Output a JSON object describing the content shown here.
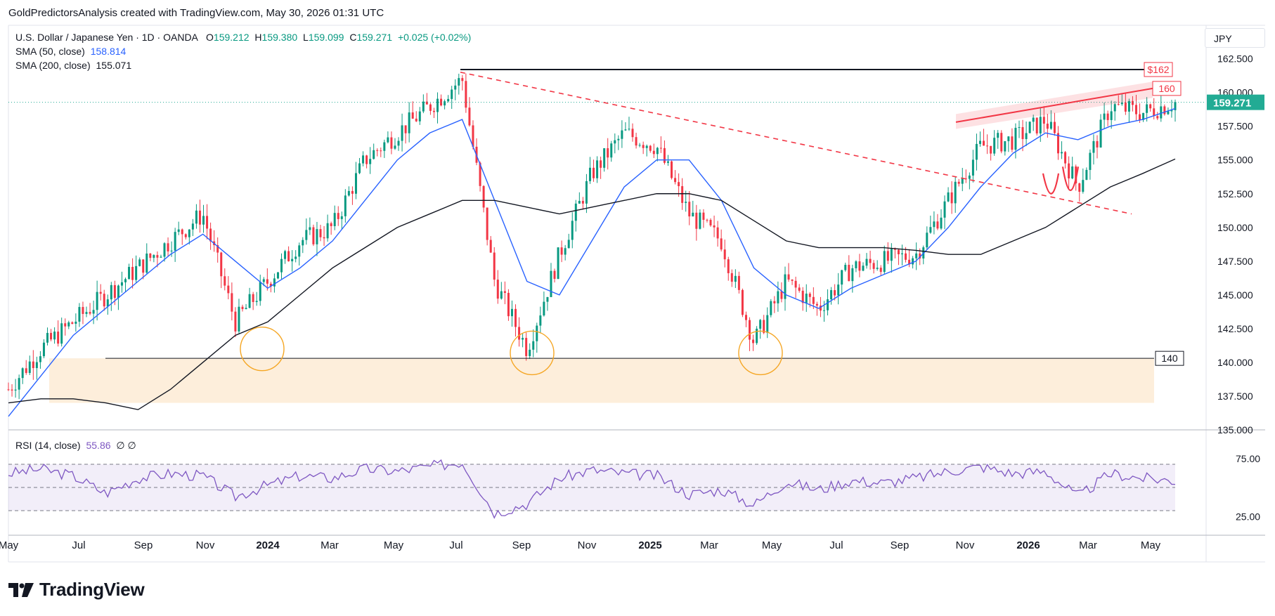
{
  "attribution": "GoldPredictorsAnalysis created with TradingView.com, May 30, 2026 01:31 UTC",
  "symbol": {
    "title": "U.S. Dollar / Japanese Yen · 1D · OANDA",
    "o_label": "O",
    "o": "159.212",
    "h_label": "H",
    "h": "159.380",
    "l_label": "L",
    "l": "159.099",
    "c_label": "C",
    "c": "159.271",
    "change": "+0.025 (+0.02%)"
  },
  "indicators": {
    "sma50_label": "SMA (50, close)",
    "sma50_value": "158.814",
    "sma200_label": "SMA (200, close)",
    "sma200_value": "155.071",
    "rsi_label": "RSI (14, close)",
    "rsi_value": "55.86",
    "rsi_extra": "∅ ∅"
  },
  "currency_button": "JPY",
  "brand": "TradingView",
  "colors": {
    "up": "#089981",
    "down": "#f23645",
    "sma50": "#2962ff",
    "sma200": "#131722",
    "rsi": "#7e57c2",
    "support_zone": "#fdeedb",
    "circle": "#f5a623",
    "trend": "#f23645",
    "last_price": "#22ab94"
  },
  "chart_data": [
    {
      "type": "line",
      "name": "price",
      "ylim": [
        135.0,
        163.0
      ],
      "x": [
        "2023-05",
        "2023-06",
        "2023-07",
        "2023-08",
        "2023-09",
        "2023-10",
        "2023-11",
        "2023-12",
        "2024-01",
        "2024-02",
        "2024-03",
        "2024-04",
        "2024-05",
        "2024-06",
        "2024-07",
        "2024-08",
        "2024-09",
        "2024-10",
        "2024-11",
        "2024-12",
        "2025-01",
        "2025-02",
        "2025-03",
        "2025-04",
        "2025-05",
        "2025-06",
        "2025-07",
        "2025-08",
        "2025-09",
        "2025-10",
        "2025-11",
        "2025-12",
        "2026-01",
        "2026-02",
        "2026-03",
        "2026-04",
        "2026-05"
      ],
      "x_ticks": [
        "May",
        "Jul",
        "Sep",
        "Nov",
        "2024",
        "Mar",
        "May",
        "Jul",
        "Sep",
        "Nov",
        "2025",
        "Mar",
        "May",
        "Jul",
        "Sep",
        "Nov",
        "2026",
        "Mar",
        "May"
      ],
      "y_ticks": [
        "135.000",
        "137.500",
        "140.000",
        "142.500",
        "145.000",
        "147.500",
        "150.000",
        "152.500",
        "155.000",
        "157.500",
        "160.000",
        "162.500"
      ],
      "series": [
        {
          "name": "U.S. Dollar / Japanese Yen",
          "values": [
            138.0,
            141.0,
            143.0,
            145.0,
            147.0,
            149.0,
            151.0,
            143.0,
            146.0,
            149.0,
            150.0,
            155.0,
            157.0,
            159.0,
            161.0,
            146.0,
            141.0,
            148.0,
            154.0,
            157.0,
            156.0,
            151.0,
            149.0,
            141.5,
            146.0,
            144.0,
            147.0,
            147.5,
            148.0,
            152.0,
            156.0,
            156.5,
            158.0,
            153.0,
            159.0,
            158.5,
            159.271
          ]
        },
        {
          "name": "SMA (50, close)",
          "values": [
            136.0,
            139.0,
            142.0,
            144.0,
            146.0,
            148.0,
            149.5,
            147.5,
            145.5,
            147.0,
            149.0,
            152.0,
            155.0,
            157.0,
            158.0,
            152.0,
            146.0,
            145.0,
            149.0,
            153.0,
            155.0,
            155.0,
            152.0,
            147.0,
            145.0,
            144.0,
            145.5,
            146.5,
            147.5,
            150.0,
            153.0,
            155.5,
            157.0,
            156.5,
            157.5,
            158.0,
            158.814
          ]
        },
        {
          "name": "SMA (200, close)",
          "values": [
            137.0,
            137.3,
            137.3,
            137.0,
            136.5,
            138.0,
            140.0,
            142.0,
            143.0,
            145.0,
            147.0,
            148.5,
            150.0,
            151.0,
            152.0,
            152.0,
            151.5,
            151.0,
            151.5,
            152.0,
            152.5,
            152.5,
            152.0,
            150.5,
            149.0,
            148.5,
            148.5,
            148.5,
            148.3,
            148.0,
            148.0,
            149.0,
            150.0,
            151.5,
            153.0,
            154.0,
            155.071
          ]
        }
      ],
      "annotations": [
        {
          "label": "$162",
          "value": 161.7,
          "kind": "resistance"
        },
        {
          "label": "160",
          "value": 160.3,
          "kind": "rising-resistance"
        },
        {
          "label": "140",
          "value": 140.3,
          "kind": "support"
        }
      ],
      "last_price": "159.271"
    },
    {
      "type": "line",
      "name": "rsi",
      "ylim": [
        10,
        90
      ],
      "y_ticks": [
        "25.00",
        "75.00"
      ],
      "bands": [
        30,
        70
      ],
      "series": [
        {
          "name": "RSI (14, close)",
          "values": [
            62,
            66,
            60,
            45,
            58,
            62,
            60,
            42,
            52,
            60,
            58,
            66,
            64,
            68,
            72,
            28,
            36,
            58,
            65,
            62,
            60,
            44,
            48,
            35,
            55,
            48,
            56,
            54,
            58,
            64,
            68,
            62,
            64,
            42,
            62,
            58,
            55.86
          ]
        }
      ]
    }
  ]
}
